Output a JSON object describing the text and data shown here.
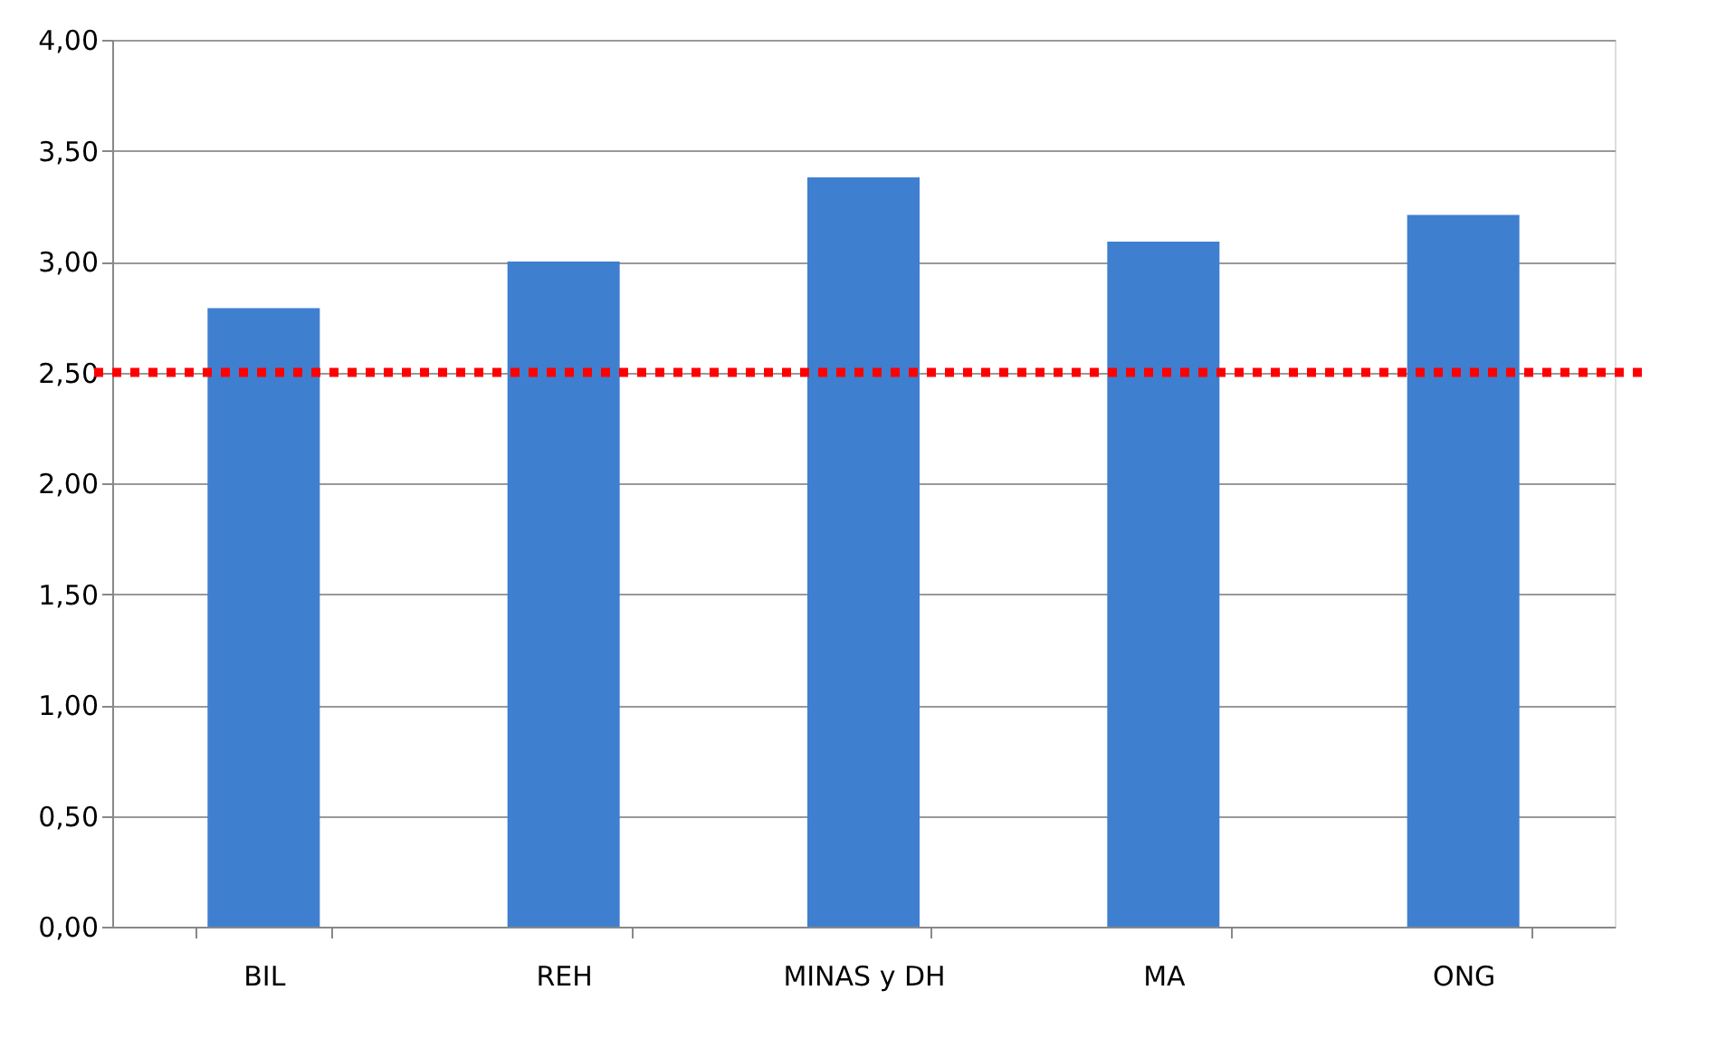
{
  "chart_data": {
    "type": "bar",
    "categories": [
      "BIL",
      "REH",
      "MINAS y DH",
      "MA",
      "ONG"
    ],
    "values": [
      2.79,
      3.0,
      3.38,
      3.09,
      3.21
    ],
    "color": "#3f7fd0",
    "ylim": [
      0,
      4
    ],
    "yticks": [
      {
        "value": 0,
        "label": "0,00"
      },
      {
        "value": 0.5,
        "label": "0,50"
      },
      {
        "value": 1,
        "label": "1,00"
      },
      {
        "value": 1.5,
        "label": "1,50"
      },
      {
        "value": 2,
        "label": "2,00"
      },
      {
        "value": 2.5,
        "label": "2,50"
      },
      {
        "value": 3,
        "label": "3,00"
      },
      {
        "value": 3.5,
        "label": "3,50"
      },
      {
        "value": 4,
        "label": "4,00"
      }
    ],
    "grid": "y",
    "ref_lines": [
      {
        "axis": "y",
        "value": 2.5,
        "color": "#ff0000",
        "line_style": "dotted"
      }
    ]
  }
}
